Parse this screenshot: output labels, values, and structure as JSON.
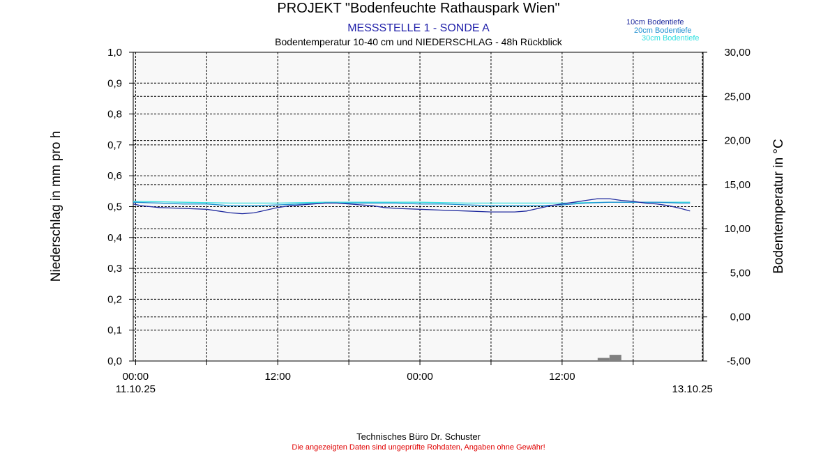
{
  "colors": {
    "subtitle": "#2222aa",
    "series_10cm": "#1f2a9e",
    "series_20cm": "#1e8fd0",
    "series_30cm": "#33e0e0",
    "precip": "#808080",
    "disclaimer": "#e00000",
    "plot_bg": "#f8f8f8"
  },
  "chart_data": {
    "type": "line",
    "title": "PROJEKT \"Bodenfeuchte Rathauspark Wien\"",
    "subtitle": "MESSSTELLE 1 - SONDE A",
    "description": "Bodentemperatur 10-40 cm und NIEDERSCHLAG - 48h Rückblick",
    "ylabel_left": "Niederschlag in mm pro h",
    "ylabel_right": "Bodentemperatur in °C",
    "ylim_left": [
      0,
      1
    ],
    "ylim_right": [
      -5,
      30
    ],
    "x_range_hours": [
      -0.2,
      47.9
    ],
    "yticks_left": [
      "0,0",
      "0,1",
      "0,2",
      "0,3",
      "0,4",
      "0,5",
      "0,6",
      "0,7",
      "0,8",
      "0,9",
      "1,0"
    ],
    "yticks_right": [
      "-5,00",
      "0,00",
      "5,00",
      "10,00",
      "15,00",
      "20,00",
      "25,00",
      "30,00"
    ],
    "xticks": [
      {
        "hour": 0,
        "time": "00:00",
        "date": "11.10.25"
      },
      {
        "hour": 12,
        "time": "12:00",
        "date": ""
      },
      {
        "hour": 24,
        "time": "00:00",
        "date": ""
      },
      {
        "hour": 36,
        "time": "12:00",
        "date": ""
      },
      {
        "hour": 47,
        "time": "",
        "date": "13.10.25"
      }
    ],
    "legend_position": "top-right",
    "grid": true,
    "series": [
      {
        "name": "10cm Bodentiefe",
        "axis": "right",
        "points": [
          [
            -0.2,
            12.8
          ],
          [
            0.5,
            12.6
          ],
          [
            2,
            12.4
          ],
          [
            4,
            12.3
          ],
          [
            6,
            12.2
          ],
          [
            7,
            12.0
          ],
          [
            8,
            11.8
          ],
          [
            9,
            11.7
          ],
          [
            10,
            11.8
          ],
          [
            11,
            12.1
          ],
          [
            12,
            12.4
          ],
          [
            13,
            12.6
          ],
          [
            14,
            12.7
          ],
          [
            15,
            12.8
          ],
          [
            16,
            12.9
          ],
          [
            17,
            12.9
          ],
          [
            18,
            12.8
          ],
          [
            19,
            12.7
          ],
          [
            20,
            12.6
          ],
          [
            21,
            12.4
          ],
          [
            22,
            12.3
          ],
          [
            24,
            12.2
          ],
          [
            26,
            12.1
          ],
          [
            28,
            12.0
          ],
          [
            30,
            11.9
          ],
          [
            31,
            11.9
          ],
          [
            32,
            11.9
          ],
          [
            33,
            12.0
          ],
          [
            34,
            12.3
          ],
          [
            35,
            12.6
          ],
          [
            36,
            12.8
          ],
          [
            37,
            13.0
          ],
          [
            38,
            13.2
          ],
          [
            39,
            13.4
          ],
          [
            40,
            13.4
          ],
          [
            41,
            13.2
          ],
          [
            42,
            13.1
          ],
          [
            43,
            12.9
          ],
          [
            44,
            12.8
          ],
          [
            45,
            12.6
          ],
          [
            46,
            12.3
          ],
          [
            46.8,
            12.0
          ]
        ]
      },
      {
        "name": "20cm Bodentiefe",
        "axis": "right",
        "points": [
          [
            -0.2,
            13.0
          ],
          [
            2,
            12.9
          ],
          [
            4,
            12.8
          ],
          [
            6,
            12.8
          ],
          [
            8,
            12.6
          ],
          [
            10,
            12.6
          ],
          [
            12,
            12.7
          ],
          [
            14,
            12.8
          ],
          [
            16,
            12.9
          ],
          [
            18,
            12.9
          ],
          [
            20,
            12.9
          ],
          [
            22,
            12.9
          ],
          [
            24,
            12.8
          ],
          [
            26,
            12.8
          ],
          [
            28,
            12.7
          ],
          [
            30,
            12.6
          ],
          [
            32,
            12.6
          ],
          [
            34,
            12.6
          ],
          [
            36,
            12.7
          ],
          [
            38,
            12.9
          ],
          [
            40,
            13.0
          ],
          [
            42,
            13.0
          ],
          [
            44,
            13.0
          ],
          [
            46,
            12.9
          ],
          [
            46.8,
            12.9
          ]
        ]
      },
      {
        "name": "30cm Bodentiefe",
        "axis": "right",
        "points": [
          [
            -0.2,
            13.1
          ],
          [
            4,
            13.0
          ],
          [
            8,
            12.9
          ],
          [
            12,
            12.9
          ],
          [
            16,
            13.0
          ],
          [
            20,
            13.0
          ],
          [
            24,
            13.0
          ],
          [
            28,
            12.9
          ],
          [
            32,
            12.9
          ],
          [
            36,
            12.9
          ],
          [
            40,
            13.0
          ],
          [
            44,
            13.0
          ],
          [
            46.8,
            13.0
          ]
        ]
      }
    ],
    "precipitation": {
      "name": "Niederschlag",
      "axis": "left",
      "bars": [
        {
          "hour": 39,
          "value": 0.01
        },
        {
          "hour": 40,
          "value": 0.02
        }
      ]
    }
  },
  "footer": {
    "company": "Technisches Büro Dr. Schuster",
    "disclaimer": "Die angezeigten Daten sind ungeprüfte Rohdaten, Angaben ohne Gewähr!"
  }
}
